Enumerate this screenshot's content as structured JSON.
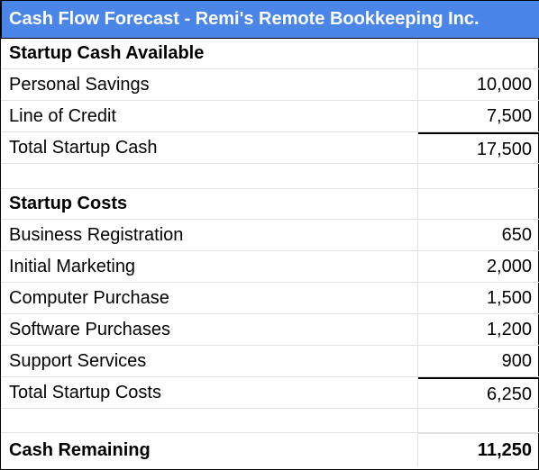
{
  "title": "Cash Flow Forecast - Remi's Remote Bookkeeping Inc.",
  "startup_cash": {
    "header": "Startup Cash Available",
    "items": [
      {
        "label": "Personal Savings",
        "value": "10,000"
      },
      {
        "label": "Line of Credit",
        "value": "7,500"
      }
    ],
    "total_label": "Total Startup Cash",
    "total_value": "17,500"
  },
  "startup_costs": {
    "header": "Startup Costs",
    "items": [
      {
        "label": "Business Registration",
        "value": "650"
      },
      {
        "label": "Initial Marketing",
        "value": "2,000"
      },
      {
        "label": "Computer Purchase",
        "value": "1,500"
      },
      {
        "label": "Software Purchases",
        "value": "1,200"
      },
      {
        "label": "Support Services",
        "value": "900"
      }
    ],
    "total_label": "Total Startup Costs",
    "total_value": "6,250"
  },
  "cash_remaining": {
    "label": "Cash Remaining",
    "value": "11,250"
  },
  "colors": {
    "title_background": "#4a86e8",
    "title_text": "#ffffff",
    "gridline": "#e2e2e2"
  }
}
